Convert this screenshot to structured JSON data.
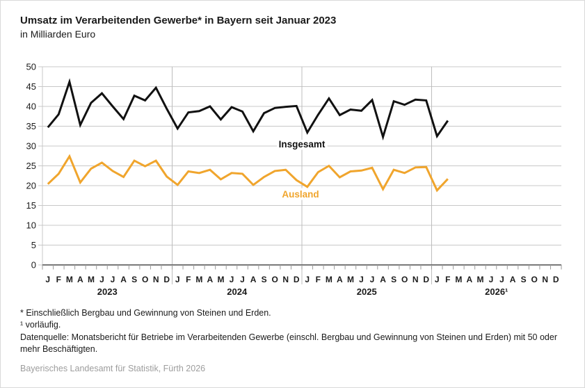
{
  "source_line": "Bayerisches Landesamt für Statistik, Fürth 2026",
  "footnotes": [
    "* Einschließlich Bergbau und Gewinnung von Steinen und Erden.",
    "¹ vorläufig.",
    "Datenquelle: Monatsbericht für Betriebe im Verarbeitenden Gewerbe (einschl. Bergbau und Gewinnung von Steinen und Erden) mit 50 oder mehr Beschäftigten."
  ],
  "chart_data": {
    "type": "line",
    "title": "Umsatz im Verarbeitenden Gewerbe* in Bayern seit Januar 2023",
    "subtitle": "in Milliarden Euro",
    "ylim": [
      0,
      50
    ],
    "ytick_step": 5,
    "grid": true,
    "legend_position": "inline-labels",
    "x_month_labels": [
      "J",
      "F",
      "M",
      "A",
      "M",
      "J",
      "J",
      "A",
      "S",
      "O",
      "N",
      "D"
    ],
    "year_labels": [
      "2023",
      "2024",
      "2025",
      "2026¹"
    ],
    "colors": {
      "insgesamt": "#111111",
      "ausland": "#F0A52D",
      "gridline": "#c8c8c8",
      "separator": "#bdbdbd",
      "axis": "#4d4d4d"
    },
    "series": [
      {
        "name": "Insgesamt",
        "color": "#111111",
        "values": [
          34.7,
          38.0,
          46.2,
          35.3,
          40.9,
          43.3,
          40.0,
          36.8,
          42.7,
          41.5,
          44.7,
          39.4,
          34.4,
          38.5,
          38.8,
          40.0,
          36.7,
          39.8,
          38.7,
          33.7,
          38.3,
          39.6,
          39.9,
          40.1,
          33.4,
          37.9,
          42.0,
          37.8,
          39.2,
          38.9,
          41.6,
          32.3,
          41.3,
          40.4,
          41.7,
          41.5,
          32.5,
          36.4
        ]
      },
      {
        "name": "Ausland",
        "color": "#F0A52D",
        "values": [
          20.4,
          23.0,
          27.4,
          20.8,
          24.3,
          25.8,
          23.7,
          22.2,
          26.3,
          24.9,
          26.3,
          22.3,
          20.2,
          23.6,
          23.2,
          24.0,
          21.6,
          23.2,
          23.0,
          20.2,
          22.2,
          23.7,
          24.0,
          21.4,
          19.7,
          23.4,
          25.0,
          22.1,
          23.6,
          23.8,
          24.5,
          19.1,
          24.0,
          23.2,
          24.6,
          24.7,
          18.8,
          21.7
        ]
      }
    ]
  }
}
